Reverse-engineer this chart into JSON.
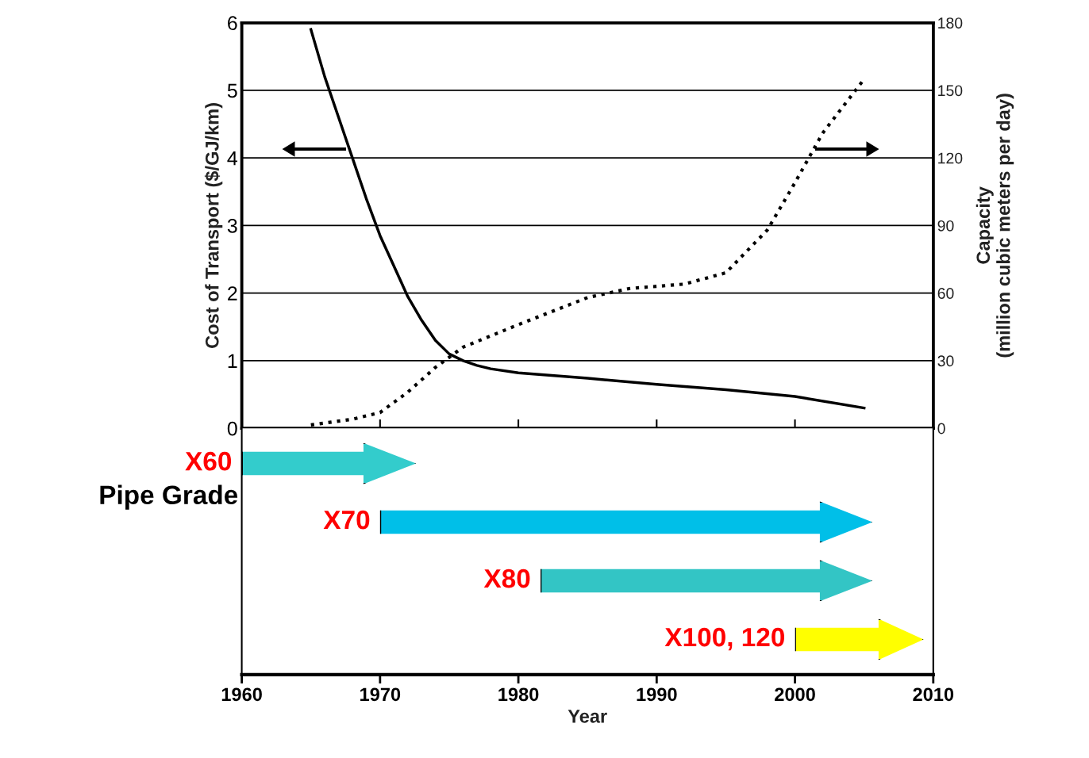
{
  "chart_data": [
    {
      "type": "line",
      "ylabel": "Cost of Transport ($/GJ/km)",
      "y2label": "Capacity\n(million cubic meters per day)",
      "xlim": [
        1960,
        2010
      ],
      "xticks": [
        {
          "value": 1960,
          "label": null
        },
        {
          "value": 1970,
          "label": null
        },
        {
          "value": 1980,
          "label": null
        },
        {
          "value": 1990,
          "label": null
        },
        {
          "value": 2000,
          "label": null
        },
        {
          "value": 2010,
          "label": null
        }
      ],
      "ylim": [
        0,
        6
      ],
      "yticks": [
        0,
        1,
        2,
        3,
        4,
        5,
        6
      ],
      "y2lim": [
        0,
        180
      ],
      "y2ticks": [
        0,
        30,
        60,
        90,
        120,
        150,
        180
      ],
      "grid": "y",
      "tick_labels": "y",
      "series": [
        {
          "color": "#000000",
          "line_style": "solid",
          "x": [
            1965,
            1966,
            1967,
            1968,
            1969,
            1970,
            1971,
            1972,
            1973,
            1974,
            1975,
            1976,
            1977,
            1978,
            1980,
            1985,
            1990,
            1995,
            2000,
            2005
          ],
          "values": [
            5.9,
            5.2,
            4.6,
            4.0,
            3.4,
            2.85,
            2.4,
            1.95,
            1.6,
            1.3,
            1.1,
            1.0,
            0.93,
            0.88,
            0.82,
            0.74,
            0.65,
            0.57,
            0.47,
            0.3
          ]
        },
        {
          "color": "#000000",
          "line_style": "dotted",
          "axis": "y2",
          "x": [
            1965,
            1968,
            1970,
            1972,
            1974,
            1976,
            1980,
            1985,
            1988,
            1992,
            1995,
            1998,
            2000,
            2002,
            2005
          ],
          "values": [
            1.5,
            4,
            7,
            16,
            27,
            36,
            46,
            58,
            62,
            64,
            69,
            88,
            109,
            131,
            155
          ]
        }
      ]
    },
    {
      "type": "bar",
      "orientation": "horizontal",
      "ylabel": "Pipe Grade",
      "xlabel": "Year",
      "categories": [
        "X60",
        "X70",
        "X80",
        "X100, 120"
      ],
      "base": [
        1960,
        1970,
        1981.6,
        2000
      ],
      "values": [
        12.6,
        35.6,
        24,
        9.3
      ],
      "colors": [
        "#33cccc",
        "#00bfe8",
        "#33c5c5",
        "#ffff00"
      ],
      "xlim": [
        1960,
        2010
      ],
      "xticks": [
        1960,
        1970,
        1980,
        1990,
        2000,
        2010
      ]
    }
  ]
}
